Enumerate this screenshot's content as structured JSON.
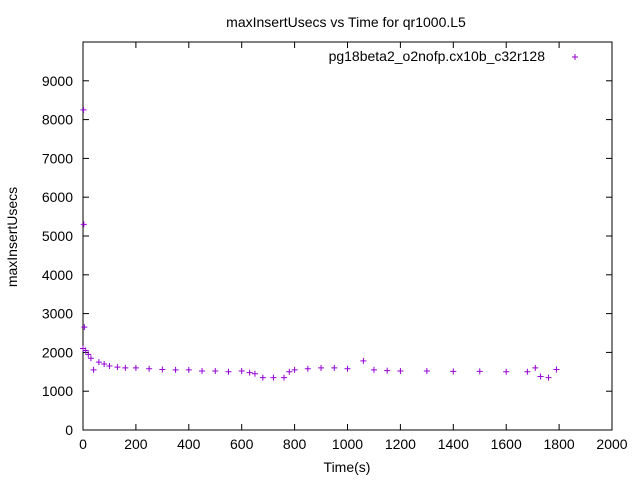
{
  "chart_data": {
    "type": "scatter",
    "title": "maxInsertUsecs vs Time for qr1000.L5",
    "xlabel": "Time(s)",
    "ylabel": "maxInsertUsecs",
    "xlim": [
      0,
      2000
    ],
    "ylim": [
      0,
      10000
    ],
    "xticks": [
      0,
      200,
      400,
      600,
      800,
      1000,
      1200,
      1400,
      1600,
      1800,
      2000
    ],
    "yticks": [
      0,
      1000,
      2000,
      3000,
      4000,
      5000,
      6000,
      7000,
      8000,
      9000
    ],
    "grid": false,
    "legend_position": "top-right",
    "marker": "plus",
    "color": "#9400D3",
    "series": [
      {
        "name": "pg18beta2_o2nofp.cx10b_c32r128",
        "x": [
          0,
          2,
          3,
          5,
          10,
          20,
          30,
          40,
          60,
          80,
          100,
          130,
          160,
          200,
          250,
          300,
          350,
          400,
          450,
          500,
          550,
          600,
          630,
          650,
          680,
          720,
          760,
          780,
          800,
          850,
          900,
          950,
          1000,
          1060,
          1100,
          1150,
          1200,
          1300,
          1400,
          1500,
          1600,
          1680,
          1710,
          1730,
          1760,
          1790
        ],
        "y": [
          2100,
          8250,
          5300,
          2650,
          2050,
          1950,
          1850,
          1550,
          1750,
          1700,
          1650,
          1620,
          1600,
          1600,
          1580,
          1560,
          1550,
          1550,
          1520,
          1520,
          1500,
          1520,
          1480,
          1450,
          1350,
          1350,
          1350,
          1500,
          1550,
          1580,
          1600,
          1600,
          1580,
          1780,
          1550,
          1530,
          1520,
          1520,
          1510,
          1510,
          1500,
          1500,
          1600,
          1380,
          1350,
          1560
        ]
      }
    ]
  }
}
